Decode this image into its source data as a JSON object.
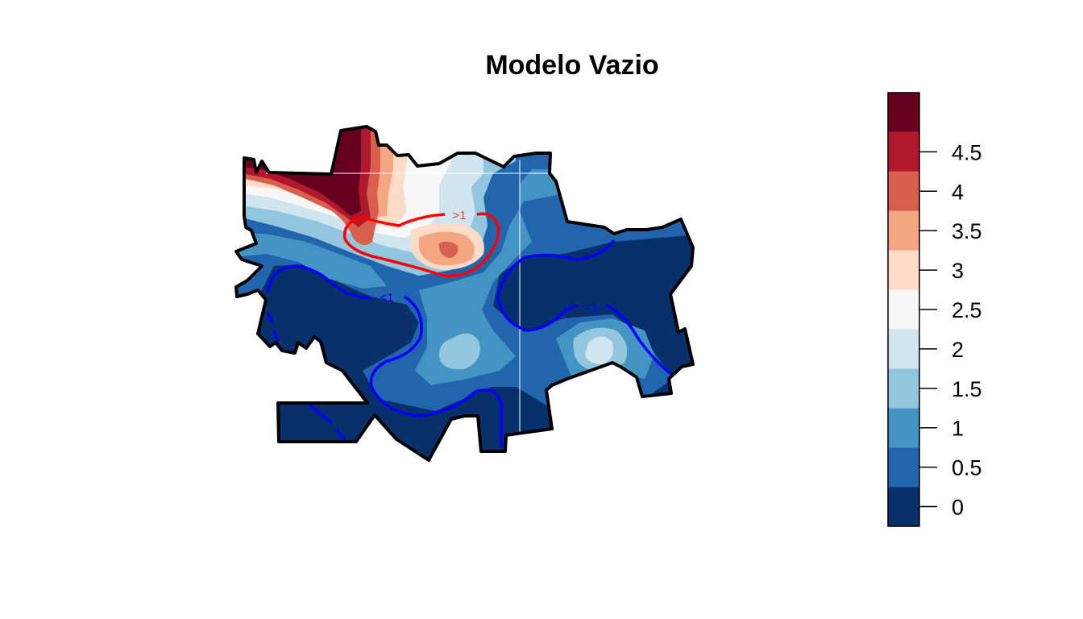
{
  "title": "Modelo Vazio",
  "colors": {
    "boundary": "#000000",
    "contour_high": "#ff0000",
    "contour_low": "#0000ff",
    "base": "#08306b"
  },
  "contour_labels": {
    "high": ">1",
    "low": "<1"
  },
  "legend": {
    "ticks": [
      {
        "value": 0,
        "label": "0"
      },
      {
        "value": 0.5,
        "label": "0.5"
      },
      {
        "value": 1,
        "label": "1"
      },
      {
        "value": 1.5,
        "label": "1.5"
      },
      {
        "value": 2,
        "label": "2"
      },
      {
        "value": 2.5,
        "label": "2.5"
      },
      {
        "value": 3,
        "label": "3"
      },
      {
        "value": 3.5,
        "label": "3.5"
      },
      {
        "value": 4,
        "label": "4"
      },
      {
        "value": 4.5,
        "label": "4.5"
      }
    ],
    "bins": [
      {
        "from": -0.25,
        "to": 0.25,
        "color": "#08306b"
      },
      {
        "from": 0.25,
        "to": 0.75,
        "color": "#2166ac"
      },
      {
        "from": 0.75,
        "to": 1.25,
        "color": "#4393c3"
      },
      {
        "from": 1.25,
        "to": 1.75,
        "color": "#92c5de"
      },
      {
        "from": 1.75,
        "to": 2.25,
        "color": "#d1e5f0"
      },
      {
        "from": 2.25,
        "to": 2.75,
        "color": "#f7f7f7"
      },
      {
        "from": 2.75,
        "to": 3.25,
        "color": "#fddbc7"
      },
      {
        "from": 3.25,
        "to": 3.75,
        "color": "#f4a582"
      },
      {
        "from": 3.75,
        "to": 4.25,
        "color": "#d6604d"
      },
      {
        "from": 4.25,
        "to": 4.75,
        "color": "#b2182b"
      },
      {
        "from": 4.75,
        "to": 5.25,
        "color": "#67001f"
      }
    ],
    "range": [
      -0.25,
      5.25
    ]
  }
}
